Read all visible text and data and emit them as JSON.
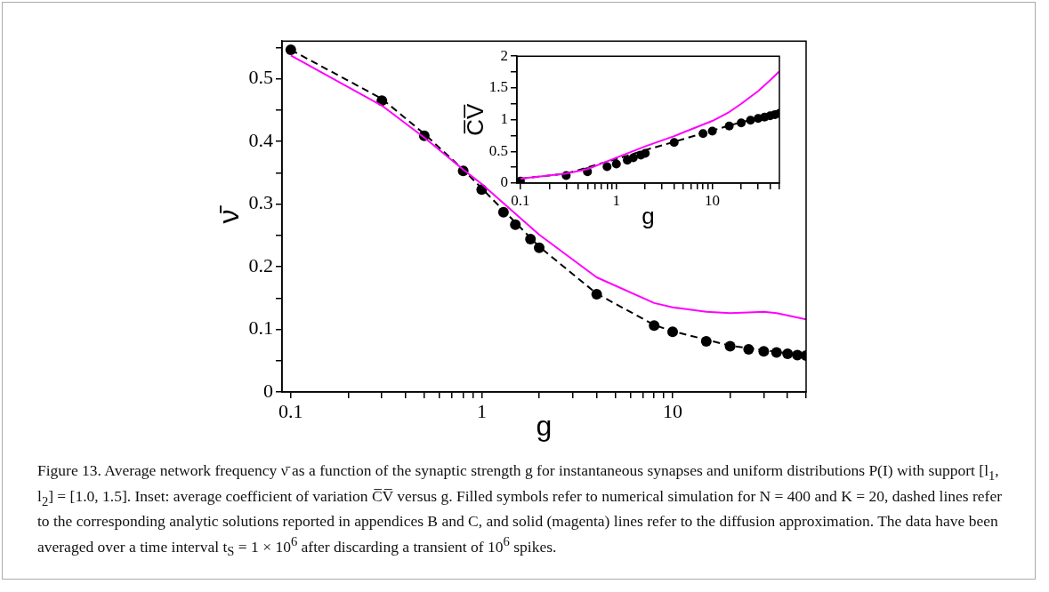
{
  "chart_data": [
    {
      "type": "scatter",
      "xlabel": "g",
      "ylabel": "ν̄",
      "log": "x",
      "legend": false,
      "grid": false,
      "xlim": [
        0.09,
        50
      ],
      "ylim": [
        0,
        0.56
      ],
      "xticks": [
        0.1,
        {
          "value": 0.2,
          "label": null
        },
        {
          "value": 0.3,
          "label": null
        },
        {
          "value": 0.4,
          "label": null
        },
        {
          "value": 0.5,
          "label": null
        },
        {
          "value": 0.6,
          "label": null
        },
        {
          "value": 0.7,
          "label": null
        },
        {
          "value": 0.8,
          "label": null
        },
        {
          "value": 0.9,
          "label": null
        },
        1,
        {
          "value": 2,
          "label": null
        },
        {
          "value": 3,
          "label": null
        },
        {
          "value": 4,
          "label": null
        },
        {
          "value": 5,
          "label": null
        },
        {
          "value": 6,
          "label": null
        },
        {
          "value": 7,
          "label": null
        },
        {
          "value": 8,
          "label": null
        },
        {
          "value": 9,
          "label": null
        },
        10,
        {
          "value": 20,
          "label": null
        },
        {
          "value": 30,
          "label": null
        },
        {
          "value": 40,
          "label": null
        },
        {
          "value": 50,
          "label": null
        }
      ],
      "yticks": [
        0,
        {
          "value": 0.05,
          "label": null
        },
        0.1,
        {
          "value": 0.15,
          "label": null
        },
        0.2,
        {
          "value": 0.25,
          "label": null
        },
        0.3,
        {
          "value": 0.35,
          "label": null
        },
        0.4,
        {
          "value": 0.45,
          "label": null
        },
        0.5,
        {
          "value": 0.55,
          "label": null
        }
      ],
      "series": [
        {
          "type": "scatter",
          "marker": "circle",
          "color": "#000000",
          "x": [
            0.1,
            0.3,
            0.5,
            0.8,
            1,
            1.3,
            1.5,
            1.8,
            2,
            4,
            8,
            10,
            15,
            20,
            25,
            30,
            35,
            40,
            45,
            50
          ],
          "values": [
            0.546,
            0.465,
            0.409,
            0.353,
            0.323,
            0.287,
            0.267,
            0.244,
            0.23,
            0.156,
            0.106,
            0.096,
            0.081,
            0.073,
            0.068,
            0.065,
            0.063,
            0.061,
            0.059,
            0.058
          ]
        },
        {
          "type": "line",
          "marker": "none",
          "line_style": "dashed",
          "color": "#000000",
          "x": [
            0.1,
            0.3,
            0.5,
            0.8,
            1,
            2,
            4,
            8,
            10,
            20,
            50
          ],
          "values": [
            0.546,
            0.468,
            0.412,
            0.355,
            0.325,
            0.232,
            0.157,
            0.107,
            0.097,
            0.074,
            0.058
          ]
        },
        {
          "type": "line",
          "marker": "none",
          "line_style": "solid",
          "color": "#ff00ff",
          "x": [
            0.1,
            0.3,
            0.5,
            0.8,
            1,
            2,
            4,
            8,
            10,
            15,
            20,
            25,
            30,
            35,
            50
          ],
          "values": [
            0.537,
            0.457,
            0.406,
            0.355,
            0.332,
            0.251,
            0.183,
            0.142,
            0.135,
            0.128,
            0.126,
            0.127,
            0.128,
            0.126,
            0.116
          ]
        }
      ],
      "annotations": [
        "Figure 13. Average network frequency ν̄ as a function of the synaptic strength g for instantaneous synapses and uniform distributions P(I) with support [l$_{1}$, l$_{2}$] = [1.0, 1.5]. Inset: average coefficient of variation C̅V̅ versus g. Filled symbols refer to numerical simulation for N = 400 and K = 20, dashed lines refer to the corresponding analytic solutions reported in appendices B and C, and solid (magenta) lines refer to the diffusion approximation. The data have been averaged over a time interval t$_{S}$ = 1 × 10$^{6}$ after discarding a transient of 10$^{6}$ spikes."
      ]
    },
    {
      "type": "scatter",
      "xlabel": "g",
      "ylabel": "C̅V̅",
      "log": "x",
      "legend": false,
      "grid": false,
      "xlim": [
        0.092,
        50
      ],
      "ylim": [
        0,
        2
      ],
      "xticks": [
        0.1,
        {
          "value": 0.2,
          "label": null
        },
        {
          "value": 0.3,
          "label": null
        },
        {
          "value": 0.4,
          "label": null
        },
        {
          "value": 0.5,
          "label": null
        },
        {
          "value": 0.6,
          "label": null
        },
        {
          "value": 0.7,
          "label": null
        },
        {
          "value": 0.8,
          "label": null
        },
        {
          "value": 0.9,
          "label": null
        },
        1,
        {
          "value": 2,
          "label": null
        },
        {
          "value": 3,
          "label": null
        },
        {
          "value": 4,
          "label": null
        },
        {
          "value": 5,
          "label": null
        },
        {
          "value": 6,
          "label": null
        },
        {
          "value": 7,
          "label": null
        },
        {
          "value": 8,
          "label": null
        },
        {
          "value": 9,
          "label": null
        },
        10,
        {
          "value": 20,
          "label": null
        },
        {
          "value": 30,
          "label": null
        },
        {
          "value": 40,
          "label": null
        },
        {
          "value": 50,
          "label": null
        }
      ],
      "yticks": [
        0,
        {
          "value": 0.25,
          "label": null
        },
        0.5,
        {
          "value": 0.75,
          "label": null
        },
        1,
        {
          "value": 1.25,
          "label": null
        },
        1.5,
        {
          "value": 1.75,
          "label": null
        },
        2
      ],
      "series": [
        {
          "type": "scatter",
          "marker": "circle",
          "color": "#000000",
          "x": [
            0.1,
            0.3,
            0.5,
            0.8,
            1,
            1.3,
            1.5,
            1.8,
            2,
            4,
            8,
            10,
            15,
            20,
            25,
            30,
            35,
            40,
            45,
            50
          ],
          "values": [
            0.03,
            0.12,
            0.18,
            0.26,
            0.3,
            0.36,
            0.4,
            0.44,
            0.47,
            0.64,
            0.78,
            0.82,
            0.9,
            0.95,
            0.99,
            1.02,
            1.04,
            1.06,
            1.08,
            1.1
          ]
        },
        {
          "type": "line",
          "marker": "none",
          "line_style": "dashed",
          "color": "#000000",
          "x": [
            0.1,
            0.3,
            1,
            2,
            4,
            10,
            20,
            50
          ],
          "values": [
            0.07,
            0.15,
            0.38,
            0.52,
            0.65,
            0.83,
            0.96,
            1.09
          ]
        },
        {
          "type": "line",
          "marker": "none",
          "line_style": "solid",
          "color": "#ff00ff",
          "x": [
            0.1,
            0.3,
            0.5,
            1,
            2,
            4,
            10,
            15,
            20,
            30,
            40,
            50
          ],
          "values": [
            0.07,
            0.15,
            0.22,
            0.4,
            0.58,
            0.74,
            0.98,
            1.12,
            1.25,
            1.45,
            1.62,
            1.76
          ]
        }
      ]
    }
  ]
}
